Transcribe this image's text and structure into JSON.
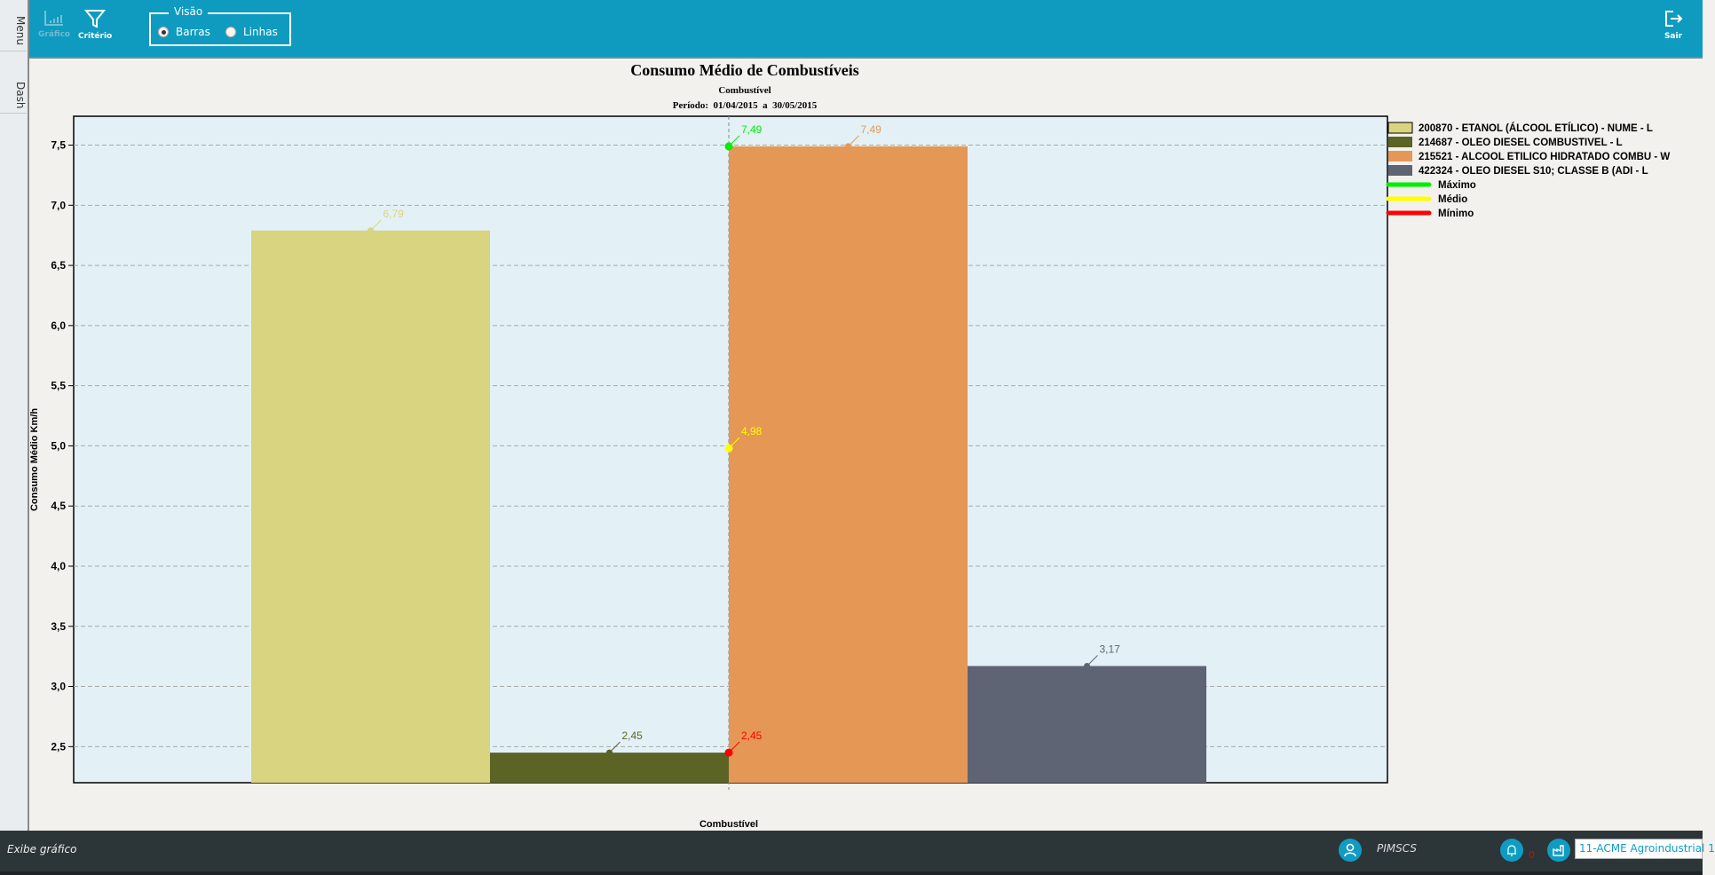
{
  "sidebar": {
    "tabs": [
      "Menu",
      "Dash"
    ]
  },
  "toolbar": {
    "grafico": "Gráfico",
    "criterio": "Critério",
    "visao_label": "Visão",
    "options": [
      "Barras",
      "Linhas"
    ],
    "selected": "Barras",
    "sair": "Sair",
    "accent": "#0e9bbf"
  },
  "status": {
    "message": "Exibe gráfico",
    "user": "PIMSCS",
    "notifications": "0",
    "company": "11-ACME Agroindustrial 1"
  },
  "chart_data": {
    "type": "bar",
    "title": "Consumo Médio de Combustíveis",
    "subtitle": "Combustível",
    "period": "Período:  01/04/2015  a  30/05/2015",
    "xlabel": "Combustível",
    "ylabel": "Consumo Médio Km/h",
    "ylim": [
      2.2,
      7.74
    ],
    "yticks": [
      "2,5",
      "3,0",
      "3,5",
      "4,0",
      "4,5",
      "5,0",
      "5,5",
      "6,0",
      "6,5",
      "7,0",
      "7,5"
    ],
    "grid": true,
    "legend_position": "right",
    "series": [
      {
        "name": "200870 - ETANOL (ÁLCOOL ETÍLICO) - NUME - L",
        "value": 6.79,
        "label": "6,79",
        "color": "#d9d47f"
      },
      {
        "name": "214687 - OLEO DIESEL COMBUSTIVEL - L",
        "value": 2.45,
        "label": "2,45",
        "color": "#5b6325"
      },
      {
        "name": "215521 - ALCOOL ETILICO HIDRATADO COMBU - W",
        "value": 7.49,
        "label": "7,49",
        "color": "#e59756"
      },
      {
        "name": "422324 - OLEO DIESEL S10; CLASSE B (ADI - L",
        "value": 3.17,
        "label": "3,17",
        "color": "#5e6474"
      }
    ],
    "reference_lines": [
      {
        "name": "Máximo",
        "value": 7.49,
        "label": "7,49",
        "color": "#00ee00"
      },
      {
        "name": "Médio",
        "value": 4.98,
        "label": "4,98",
        "color": "#ffff00"
      },
      {
        "name": "Mínimo",
        "value": 2.45,
        "label": "2,45",
        "color": "#ff0000"
      }
    ]
  }
}
